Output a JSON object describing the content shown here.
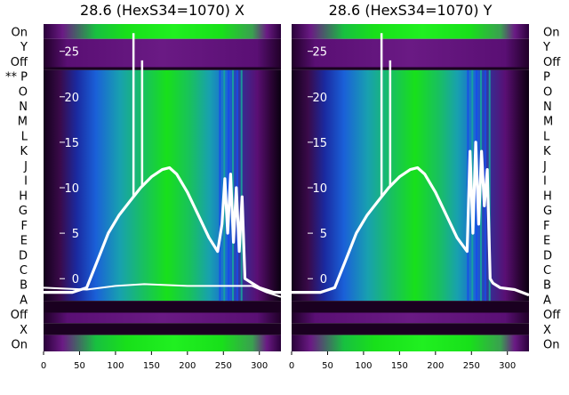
{
  "colors": {
    "page_bg": "#ffffff",
    "band_dark": "#1a0020",
    "band_purple": "#5a0f74",
    "band_purple_light": "#7a2a94",
    "green": "#18e01a",
    "teal": "#18a89a",
    "blue": "#1a4ae8",
    "trace": "#ffffff",
    "tick_text": "#ffffff",
    "label_text": "#000000"
  },
  "row_labels_left": [
    "On",
    "Y",
    "Off",
    "** P",
    "O",
    "N",
    "M",
    "L",
    "K",
    "J",
    "I",
    "H",
    "G",
    "F",
    "E",
    "D",
    "C",
    "B",
    "A",
    "Off",
    "X",
    "On"
  ],
  "row_labels_right": [
    "On",
    "Y",
    "Off",
    "P",
    "O",
    "N",
    "M",
    "L",
    "K",
    "J",
    "I",
    "H",
    "G",
    "F",
    "E",
    "D",
    "C",
    "B",
    "A",
    "Off",
    "X",
    "On"
  ],
  "chart_data": [
    {
      "type": "line",
      "title": "28.6 (HexS34=1070) X",
      "xlabel": "",
      "ylabel": "",
      "xlim": [
        0,
        330
      ],
      "ylim": [
        -8,
        28
      ],
      "x_ticks": [
        0,
        50,
        100,
        150,
        200,
        250,
        300
      ],
      "y_ticks": [
        0,
        5,
        10,
        15,
        20,
        25
      ],
      "grid": false,
      "background": "heatmap",
      "series": [
        {
          "x": [
            0,
            40,
            60,
            75,
            90,
            105,
            120,
            135,
            150,
            165,
            175,
            185,
            200,
            215,
            230,
            242,
            248,
            252,
            256,
            260,
            264,
            268,
            272,
            276,
            280,
            290,
            300,
            320,
            330
          ],
          "y": [
            -1.5,
            -1.5,
            -1,
            2,
            5,
            7,
            8.5,
            10,
            11.2,
            12,
            12.2,
            11.5,
            9.5,
            7,
            4.5,
            3,
            6,
            11,
            5,
            11.5,
            4,
            10,
            3,
            9,
            0,
            -0.5,
            -1,
            -1.5,
            -1.5
          ]
        },
        {
          "x": [
            0,
            60,
            100,
            140,
            200,
            260,
            290,
            310,
            330
          ],
          "y": [
            -1,
            -1.2,
            -0.8,
            -0.6,
            -0.8,
            -0.8,
            -0.8,
            -1.5,
            -2
          ]
        }
      ],
      "spikes": [
        {
          "x": 125,
          "y": 27
        },
        {
          "x": 137,
          "y": 24
        }
      ]
    },
    {
      "type": "line",
      "title": "28.6 (HexS34=1070) Y",
      "xlabel": "",
      "ylabel": "",
      "xlim": [
        0,
        330
      ],
      "ylim": [
        -8,
        28
      ],
      "x_ticks": [
        0,
        50,
        100,
        150,
        200,
        250,
        300
      ],
      "y_ticks": [
        0,
        5,
        10,
        15,
        20,
        25
      ],
      "grid": false,
      "background": "heatmap",
      "series": [
        {
          "x": [
            0,
            40,
            60,
            75,
            90,
            105,
            120,
            135,
            150,
            165,
            175,
            185,
            200,
            215,
            230,
            244,
            248,
            252,
            256,
            260,
            264,
            268,
            272,
            276,
            280,
            290,
            310,
            330
          ],
          "y": [
            -1.5,
            -1.5,
            -1,
            2,
            5,
            7,
            8.5,
            10,
            11.2,
            12,
            12.2,
            11.5,
            9.5,
            7,
            4.5,
            3,
            14,
            5,
            15,
            6,
            14,
            8,
            12,
            0,
            -0.5,
            -1,
            -1.2,
            -1.8
          ]
        }
      ],
      "spikes": [
        {
          "x": 125,
          "y": 27
        },
        {
          "x": 137,
          "y": 24
        }
      ]
    }
  ]
}
